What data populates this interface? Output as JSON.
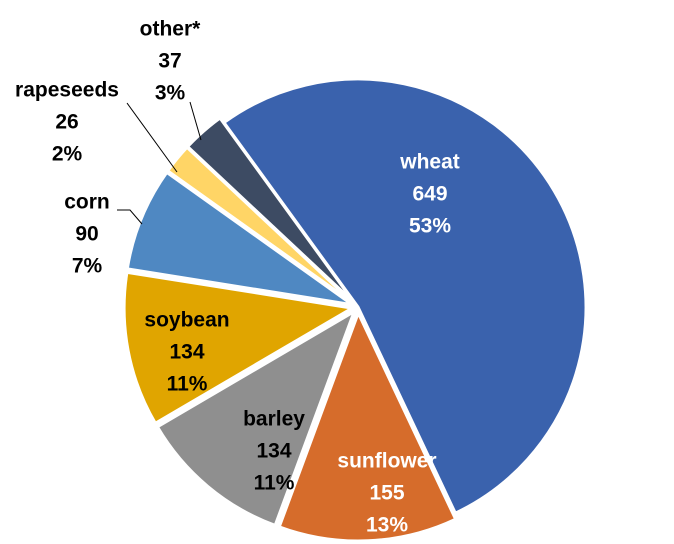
{
  "chart_data": {
    "type": "pie",
    "title": "",
    "slices": [
      {
        "name": "wheat",
        "value": 649,
        "percent": "53%",
        "color": "#3a62ad",
        "label_color": "#ffffff"
      },
      {
        "name": "sunflower",
        "value": 155,
        "percent": "13%",
        "color": "#d66c2b",
        "label_color": "#ffffff"
      },
      {
        "name": "barley",
        "value": 134,
        "percent": "11%",
        "color": "#8f8f8f",
        "label_color": "#000000"
      },
      {
        "name": "soybean",
        "value": 134,
        "percent": "11%",
        "color": "#e0a500",
        "label_color": "#000000"
      },
      {
        "name": "corn",
        "value": 90,
        "percent": "7%",
        "color": "#4f88c2",
        "label_color": "#000000"
      },
      {
        "name": "rapeseeds",
        "value": 26,
        "percent": "2%",
        "color": "#ffd566",
        "label_color": "#000000"
      },
      {
        "name": "other*",
        "value": 37,
        "percent": "3%",
        "color": "#3d4b63",
        "label_color": "#000000"
      }
    ],
    "legend": "none",
    "data_labels": "name, value, percent"
  }
}
